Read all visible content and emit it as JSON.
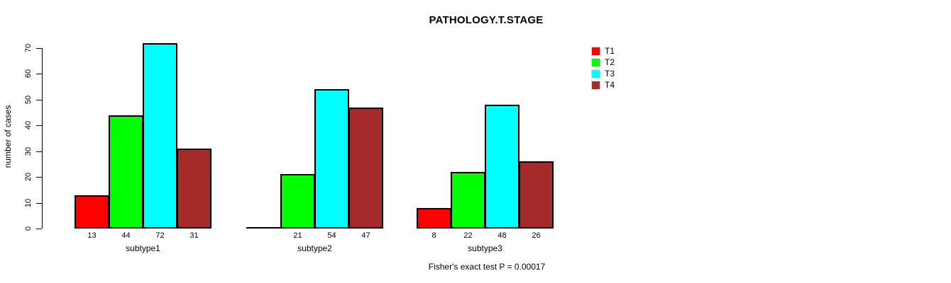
{
  "chart_data": {
    "type": "bar",
    "title": "PATHOLOGY.T.STAGE",
    "ylabel": "number of cases",
    "footnote": "Fisher's exact test P = 0.00017",
    "categories": [
      "subtype1",
      "subtype2",
      "subtype3"
    ],
    "series": [
      {
        "name": "T1",
        "color": "#ff0000",
        "values": [
          13,
          0,
          8
        ]
      },
      {
        "name": "T2",
        "color": "#00ff00",
        "values": [
          44,
          21,
          22
        ]
      },
      {
        "name": "T3",
        "color": "#00ffff",
        "values": [
          72,
          54,
          48
        ]
      },
      {
        "name": "T4",
        "color": "#a52a2a",
        "values": [
          31,
          47,
          26
        ]
      }
    ],
    "bar_labels": [
      [
        "13",
        "44",
        "72",
        "31"
      ],
      [
        null,
        "21",
        "54",
        "47"
      ],
      [
        "8",
        "22",
        "48",
        "26"
      ]
    ],
    "yticks": [
      0,
      10,
      20,
      30,
      40,
      50,
      60,
      70
    ],
    "ylim": [
      0,
      70
    ],
    "grid": false,
    "legend": {
      "position": "right",
      "entries": [
        "T1",
        "T2",
        "T3",
        "T4"
      ]
    },
    "colors": {
      "background": "#ffffff",
      "axis": "#000000",
      "bar_border": "#000000",
      "text": "#000000"
    }
  }
}
